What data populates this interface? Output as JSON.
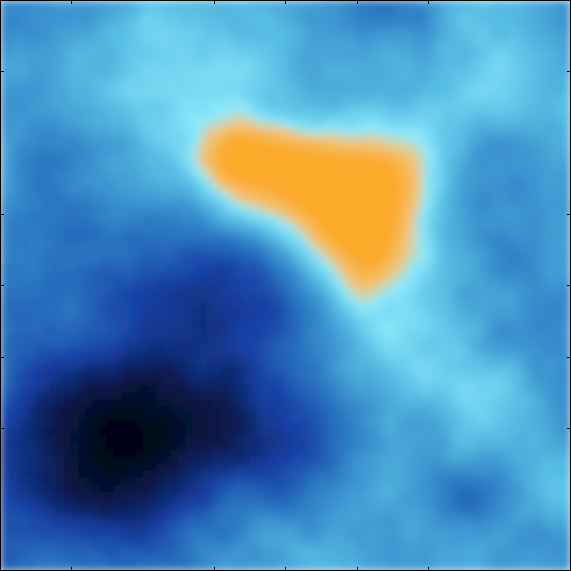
{
  "chart_data": {
    "type": "heatmap",
    "title": "",
    "xlabel": "",
    "ylabel": "",
    "tick_labels_visible": false,
    "ticks_per_side": 7,
    "colormap": [
      "#020612",
      "#0a1c52",
      "#1741a6",
      "#2f80c6",
      "#57bde3",
      "#8deafd",
      "#f3c47a",
      "#fbaa2a"
    ],
    "color_levels": [
      0.0,
      0.18,
      0.34,
      0.5,
      0.66,
      0.78,
      0.86,
      1.0
    ],
    "grid": false,
    "legend": "none",
    "value_range": [
      0,
      1
    ],
    "base_level": 0.6,
    "features": [
      {
        "kind": "peak",
        "cx": 0.64,
        "cy": 0.64,
        "sx": 0.07,
        "sy": 0.09,
        "amp": 0.42
      },
      {
        "kind": "peak",
        "cx": 0.51,
        "cy": 0.68,
        "sx": 0.09,
        "sy": 0.06,
        "amp": 0.36
      },
      {
        "kind": "peak",
        "cx": 0.42,
        "cy": 0.73,
        "sx": 0.07,
        "sy": 0.04,
        "amp": 0.26
      },
      {
        "kind": "peak",
        "cx": 0.63,
        "cy": 0.52,
        "sx": 0.035,
        "sy": 0.07,
        "amp": 0.12
      },
      {
        "kind": "ridge",
        "cx": 0.7,
        "cy": 0.38,
        "sx": 0.11,
        "sy": 0.22,
        "amp": 0.12
      },
      {
        "kind": "ridge",
        "cx": 0.85,
        "cy": 0.85,
        "sx": 0.12,
        "sy": 0.1,
        "amp": 0.1
      },
      {
        "kind": "ridge",
        "cx": 0.2,
        "cy": 0.84,
        "sx": 0.14,
        "sy": 0.08,
        "amp": 0.06
      },
      {
        "kind": "trough",
        "cx": 0.17,
        "cy": 0.2,
        "sx": 0.13,
        "sy": 0.13,
        "amp": -0.55
      },
      {
        "kind": "trough",
        "cx": 0.33,
        "cy": 0.48,
        "sx": 0.16,
        "sy": 0.1,
        "amp": -0.32
      },
      {
        "kind": "trough",
        "cx": 0.43,
        "cy": 0.23,
        "sx": 0.15,
        "sy": 0.09,
        "amp": -0.26
      },
      {
        "kind": "trough",
        "cx": 0.78,
        "cy": 0.13,
        "sx": 0.08,
        "sy": 0.07,
        "amp": -0.15
      },
      {
        "kind": "trough",
        "cx": 0.07,
        "cy": 0.7,
        "sx": 0.07,
        "sy": 0.1,
        "amp": -0.1
      },
      {
        "kind": "trough",
        "cx": 0.67,
        "cy": 0.98,
        "sx": 0.07,
        "sy": 0.04,
        "amp": -0.12
      },
      {
        "kind": "trough",
        "cx": 0.96,
        "cy": 0.6,
        "sx": 0.05,
        "sy": 0.12,
        "amp": -0.08
      }
    ]
  }
}
